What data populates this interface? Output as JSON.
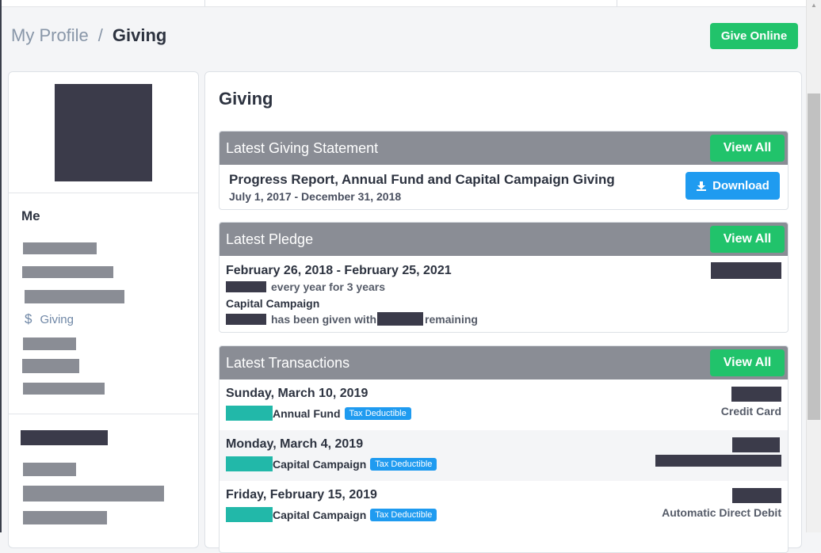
{
  "breadcrumb": {
    "parent": "My Profile",
    "separator": "/",
    "current": "Giving"
  },
  "header": {
    "give_online_label": "Give Online"
  },
  "sidebar": {
    "section_title": "Me",
    "giving_icon": "dollar-icon",
    "giving_label": "Giving"
  },
  "main": {
    "title": "Giving",
    "statement": {
      "header": "Latest Giving Statement",
      "view_all": "View All",
      "title": "Progress Report, Annual Fund and Capital Campaign Giving",
      "dates": "July 1, 2017 - December 31, 2018",
      "download_label": "Download",
      "download_icon": "download-icon"
    },
    "pledge": {
      "header": "Latest Pledge",
      "view_all": "View All",
      "dates": "February 26, 2018 - February 25, 2021",
      "frequency": "every year for 3 years",
      "campaign": "Capital Campaign",
      "given_text": "has been given with",
      "remaining_text": "remaining"
    },
    "transactions": {
      "header": "Latest Transactions",
      "view_all": "View All",
      "badge": "Tax Deductible",
      "rows": [
        {
          "date": "Sunday, March 10, 2019",
          "fund": "Annual Fund",
          "method": "Credit Card"
        },
        {
          "date": "Monday, March 4, 2019",
          "fund": "Capital Campaign",
          "method": ""
        },
        {
          "date": "Friday, February 15, 2019",
          "fund": "Capital Campaign",
          "method": "Automatic Direct Debit"
        }
      ]
    }
  },
  "colors": {
    "accent_green": "#21c36b",
    "download_blue": "#1f9bf0",
    "card_header_gray": "#8a8d95",
    "redaction": "#3b3b4a",
    "teal": "#22b8a9"
  }
}
